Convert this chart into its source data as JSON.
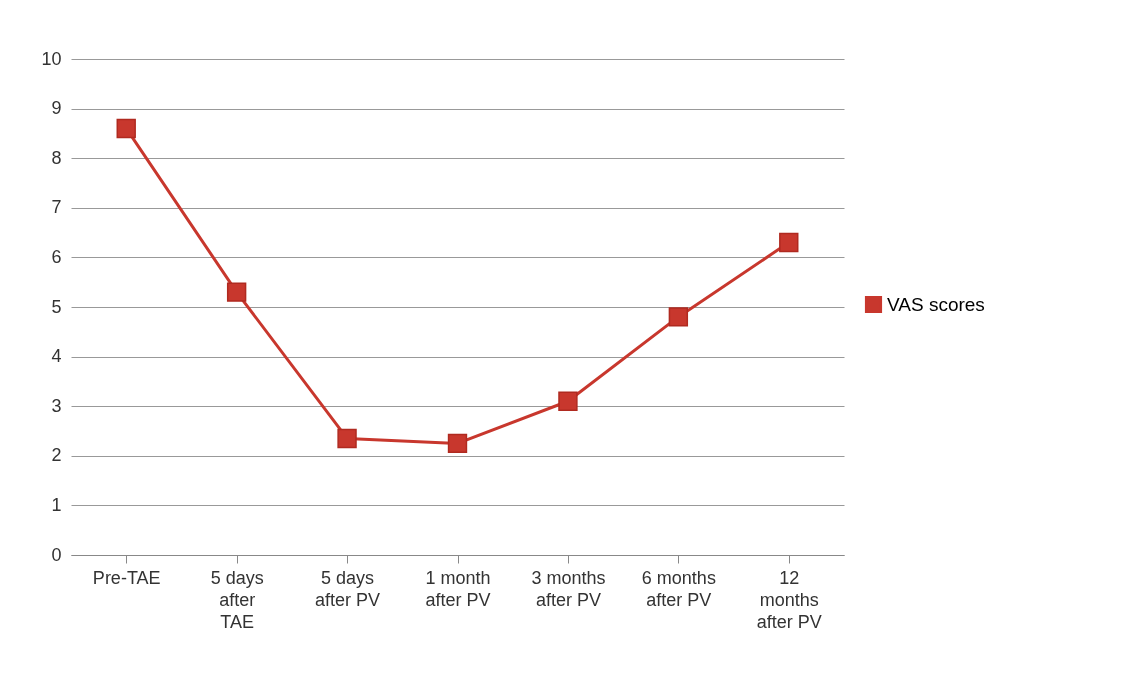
{
  "chart_data": {
    "type": "line",
    "categories": [
      "Pre-TAE",
      "5 days after TAE",
      "5 days after PV",
      "1 month after PV",
      "3 months after PV",
      "6 months after PV",
      "12 months after PV"
    ],
    "series": [
      {
        "name": "VAS scores",
        "color": "#c8372d",
        "values": [
          8.6,
          5.3,
          2.35,
          2.25,
          3.1,
          4.8,
          6.3
        ]
      }
    ],
    "ylim": [
      0,
      10
    ],
    "yticks": [
      0,
      1,
      2,
      3,
      4,
      5,
      6,
      7,
      8,
      9,
      10
    ],
    "grid": "y",
    "legend": "right",
    "marker": "square"
  }
}
